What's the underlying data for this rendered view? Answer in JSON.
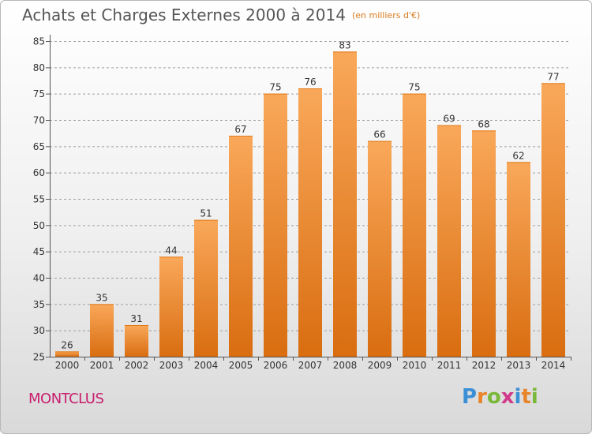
{
  "header": {
    "title": "Achats et Charges Externes 2000 à 2014",
    "unit": "(en milliers d'€)"
  },
  "commune": "MONTCLUS",
  "logo": {
    "text": "Proxiti",
    "letter_colors": [
      "#3a8fd6",
      "#e8842a",
      "#7ab83a",
      "#d23a8a",
      "#3a8fd6",
      "#e8842a",
      "#7ab83a"
    ]
  },
  "colors": {
    "bar_light": "#f9a85a",
    "bar_dark": "#d96d10",
    "grid": "#9e9e9e",
    "axis_text": "#333333"
  },
  "chart_data": {
    "type": "bar",
    "title": "Achats et Charges Externes 2000 à 2014",
    "categories": [
      "2000",
      "2001",
      "2002",
      "2003",
      "2004",
      "2005",
      "2006",
      "2007",
      "2008",
      "2009",
      "2010",
      "2011",
      "2012",
      "2013",
      "2014"
    ],
    "values": [
      26,
      35,
      31,
      44,
      51,
      67,
      75,
      76,
      83,
      66,
      75,
      69,
      68,
      62,
      77
    ],
    "ylim": [
      25,
      85
    ],
    "yticks": [
      25,
      30,
      35,
      40,
      45,
      50,
      55,
      60,
      65,
      70,
      75,
      80,
      85
    ],
    "grid": true,
    "xlabel": "",
    "ylabel": ""
  }
}
